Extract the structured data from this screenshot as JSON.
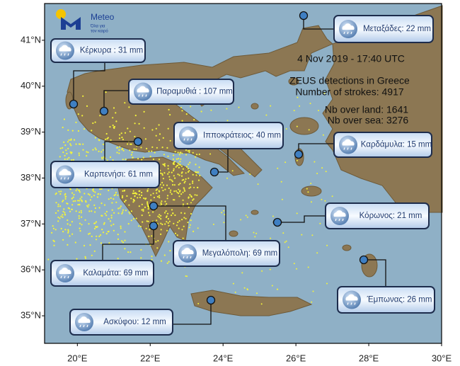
{
  "logo": {
    "name": "Meteo",
    "tagline": [
      "Όλα για",
      "τον καιρό"
    ]
  },
  "date": "4  Nov 2019 - 17:40 UTC",
  "summary": {
    "title": "ZEUS detections in Greece",
    "strokes": "Number of strokes: 4917",
    "land": "Nb over land: 1641",
    "sea": "Nb over sea: 3276"
  },
  "stations": [
    {
      "label": "Μεταξάδες: 22 mm"
    },
    {
      "label": "Κέρκυρα : 31 mm"
    },
    {
      "label": "Παραμυθιά : 107 mm"
    },
    {
      "label": "Ιπποκράτειος: 40 mm"
    },
    {
      "label": "Καρπενήσι: 61 mm"
    },
    {
      "label": "Καρδάμυλα: 15 mm"
    },
    {
      "label": "Κόρωνος: 21 mm"
    },
    {
      "label": "Μεγαλόπολη: 69 mm"
    },
    {
      "label": "Καλαμάτα: 69 mm"
    },
    {
      "label": "Έμπωνας: 26 mm"
    },
    {
      "label": "Ασκύφου: 12 mm"
    }
  ],
  "axes": {
    "xlim": [
      19.1,
      30
    ],
    "ylim": [
      34.4,
      41.8
    ],
    "xticks": [
      {
        "value": 20,
        "label": "20°E"
      },
      {
        "value": 22,
        "label": "22°E"
      },
      {
        "value": 24,
        "label": "24°E"
      },
      {
        "value": 26,
        "label": "26°E"
      },
      {
        "value": 28,
        "label": "28°E"
      },
      {
        "value": 30,
        "label": "30°E"
      }
    ],
    "yticks": [
      {
        "value": 35,
        "label": "35°N"
      },
      {
        "value": 36,
        "label": "36°N"
      },
      {
        "value": 37,
        "label": "37°N"
      },
      {
        "value": 38,
        "label": "38°N"
      },
      {
        "value": 39,
        "label": "39°N"
      },
      {
        "value": 40,
        "label": "40°N"
      },
      {
        "value": 41,
        "label": "41°N"
      }
    ]
  }
}
